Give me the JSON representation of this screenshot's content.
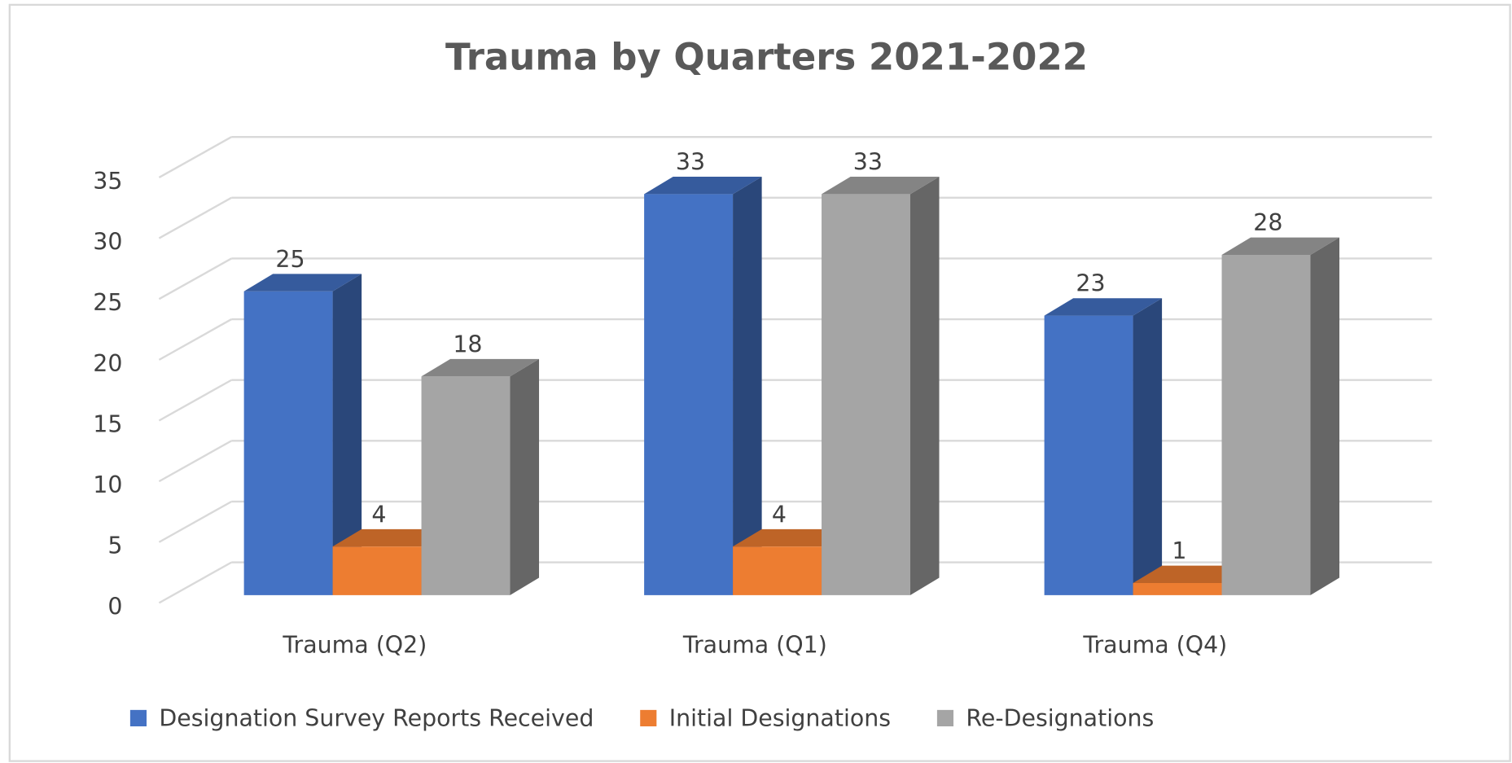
{
  "chart_data": {
    "type": "bar3d",
    "title": "Trauma by Quarters 2021-2022",
    "categories": [
      "Trauma (Q2)",
      "Trauma (Q1)",
      "Trauma (Q4)"
    ],
    "series": [
      {
        "name": "Designation Survey Reports Received",
        "color": "#4472c4",
        "values": [
          25,
          33,
          23
        ]
      },
      {
        "name": "Initial Designations",
        "color": "#ed7d31",
        "values": [
          4,
          4,
          1
        ]
      },
      {
        "name": "Re-Designations",
        "color": "#a5a5a5",
        "values": [
          18,
          33,
          28
        ]
      }
    ],
    "ylim": [
      0,
      35
    ],
    "yticks": [
      0,
      5,
      10,
      15,
      20,
      25,
      30,
      35
    ],
    "grid": true,
    "legend": "bottom"
  }
}
